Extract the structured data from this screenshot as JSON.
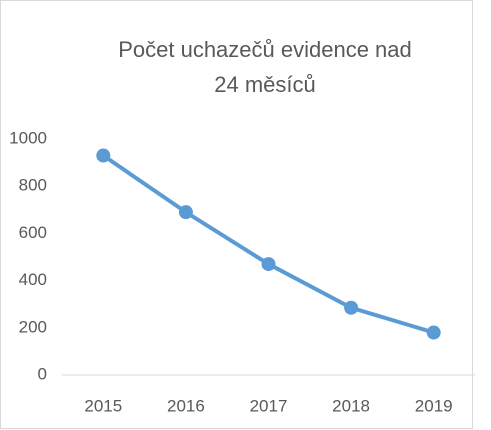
{
  "chart_data": {
    "type": "line",
    "title_lines": [
      "Počet uchazečů evidence nad",
      "24 měsíců"
    ],
    "categories": [
      "2015",
      "2016",
      "2017",
      "2018",
      "2019"
    ],
    "series": [
      {
        "name": "Počet uchazečů",
        "color": "#5b9bd5",
        "values": [
          930,
          690,
          470,
          285,
          180
        ]
      }
    ],
    "ylim": [
      0,
      1000
    ],
    "yticks": [
      0,
      200,
      400,
      600,
      800,
      1000
    ],
    "grid": false
  }
}
